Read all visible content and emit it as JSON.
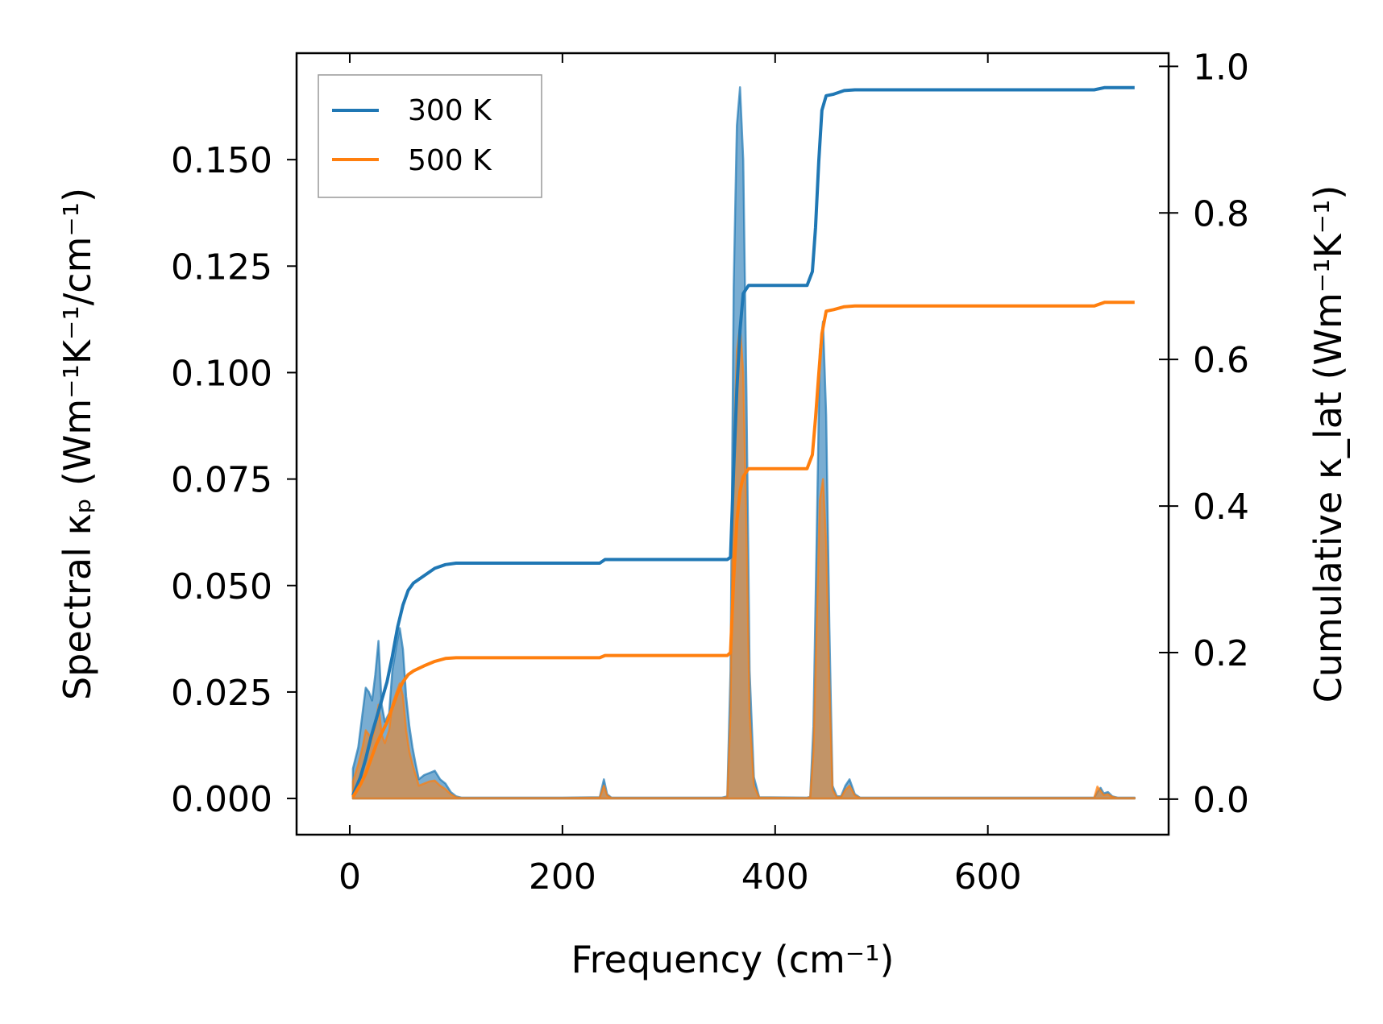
{
  "chart_data": {
    "type": "line",
    "xlabel": "Frequency (cm⁻¹)",
    "ylabel_left": "Spectral κₚ (Wm⁻¹K⁻¹/cm⁻¹)",
    "ylabel_right": "Cumulative κ_lat (Wm⁻¹K⁻¹)",
    "xlim": [
      -50,
      770
    ],
    "ylim_left": [
      -0.0085,
      0.175
    ],
    "ylim_right": [
      -0.0485,
      1.018
    ],
    "xticks": [
      0,
      200,
      400,
      600
    ],
    "xtick_labels": [
      "0",
      "200",
      "400",
      "600"
    ],
    "yticks_left": [
      0,
      0.025,
      0.05,
      0.075,
      0.1,
      0.125,
      0.15
    ],
    "ytick_labels_left": [
      "0.000",
      "0.025",
      "0.050",
      "0.075",
      "0.100",
      "0.125",
      "0.150"
    ],
    "yticks_right": [
      0,
      0.2,
      0.4,
      0.6,
      0.8,
      1.0
    ],
    "ytick_labels_right": [
      "0.0",
      "0.2",
      "0.4",
      "0.6",
      "0.8",
      "1.0"
    ],
    "legend_position": "top-left",
    "colors": {
      "300 K": "#1f77b4",
      "500 K": "#ff7f0e"
    },
    "series": [
      {
        "name": "300 K",
        "color": "#1f77b4",
        "spectral": {
          "x": [
            3,
            8,
            12,
            15,
            18,
            21,
            24,
            27,
            30,
            33,
            37,
            40,
            44,
            47,
            50,
            53,
            56,
            59,
            62,
            65,
            70,
            75,
            80,
            85,
            90,
            95,
            100,
            105,
            120,
            200,
            235,
            239,
            242,
            246,
            250,
            300,
            350,
            355,
            358,
            361,
            364,
            367,
            370,
            373,
            376,
            380,
            385,
            430,
            433,
            436,
            439,
            442,
            445,
            448,
            451,
            454,
            458,
            462,
            466,
            470,
            475,
            480,
            500,
            600,
            700,
            703,
            706,
            709,
            713,
            717,
            722,
            730,
            738
          ],
          "values": [
            0.007,
            0.012,
            0.02,
            0.026,
            0.025,
            0.023,
            0.029,
            0.037,
            0.022,
            0.018,
            0.02,
            0.03,
            0.036,
            0.04,
            0.035,
            0.024,
            0.017,
            0.012,
            0.008,
            0.0045,
            0.0055,
            0.006,
            0.0065,
            0.0045,
            0.0035,
            0.0015,
            0.0005,
            0.0002,
            0.0002,
            0.0002,
            0.0003,
            0.0045,
            0.001,
            0.0002,
            0.0002,
            0.0002,
            0.0002,
            0.0005,
            0.03,
            0.12,
            0.158,
            0.167,
            0.15,
            0.095,
            0.03,
            0.005,
            0.0003,
            0.0002,
            0.0004,
            0.017,
            0.06,
            0.105,
            0.112,
            0.09,
            0.04,
            0.003,
            0.0005,
            0.0005,
            0.003,
            0.0045,
            0.001,
            0.0002,
            0.0002,
            0.0002,
            0.0002,
            0.0015,
            0.0025,
            0.0012,
            0.0015,
            0.0005,
            0.0002,
            0.0002,
            0.0002
          ]
        },
        "cumulative": {
          "x": [
            3,
            10,
            15,
            20,
            25,
            30,
            35,
            40,
            45,
            50,
            55,
            60,
            70,
            80,
            90,
            100,
            120,
            200,
            235,
            240,
            250,
            300,
            355,
            358,
            361,
            364,
            367,
            370,
            375,
            385,
            430,
            435,
            438,
            441,
            444,
            448,
            455,
            465,
            475,
            500,
            600,
            700,
            710,
            738
          ],
          "values": [
            0.005,
            0.03,
            0.055,
            0.085,
            0.11,
            0.135,
            0.16,
            0.195,
            0.235,
            0.265,
            0.285,
            0.295,
            0.305,
            0.315,
            0.32,
            0.322,
            0.322,
            0.322,
            0.322,
            0.327,
            0.327,
            0.327,
            0.327,
            0.33,
            0.45,
            0.56,
            0.64,
            0.69,
            0.701,
            0.701,
            0.701,
            0.72,
            0.78,
            0.87,
            0.94,
            0.96,
            0.962,
            0.967,
            0.968,
            0.968,
            0.968,
            0.968,
            0.971,
            0.971
          ]
        }
      },
      {
        "name": "500 K",
        "color": "#ff7f0e",
        "spectral": {
          "x": [
            3,
            8,
            12,
            15,
            18,
            21,
            24,
            27,
            30,
            33,
            37,
            40,
            44,
            47,
            50,
            53,
            56,
            59,
            62,
            65,
            70,
            75,
            80,
            85,
            90,
            95,
            100,
            105,
            120,
            200,
            235,
            239,
            242,
            246,
            250,
            300,
            350,
            355,
            358,
            361,
            364,
            367,
            370,
            373,
            376,
            380,
            385,
            430,
            433,
            436,
            439,
            442,
            445,
            448,
            451,
            454,
            458,
            462,
            466,
            470,
            475,
            480,
            500,
            600,
            700,
            703,
            706,
            709,
            713,
            717,
            722,
            730,
            738
          ],
          "values": [
            0.004,
            0.008,
            0.012,
            0.016,
            0.015,
            0.014,
            0.017,
            0.022,
            0.015,
            0.013,
            0.016,
            0.022,
            0.025,
            0.027,
            0.024,
            0.016,
            0.011,
            0.008,
            0.0055,
            0.003,
            0.0035,
            0.004,
            0.0042,
            0.003,
            0.0022,
            0.001,
            0.0003,
            0.0001,
            0.0001,
            0.0001,
            0.0002,
            0.003,
            0.0007,
            0.0001,
            0.0001,
            0.0001,
            0.0001,
            0.0003,
            0.02,
            0.08,
            0.105,
            0.111,
            0.1,
            0.063,
            0.02,
            0.003,
            0.0002,
            0.0001,
            0.0003,
            0.011,
            0.04,
            0.07,
            0.075,
            0.06,
            0.027,
            0.002,
            0.0003,
            0.0003,
            0.002,
            0.003,
            0.0007,
            0.0001,
            0.0001,
            0.0001,
            0.0001,
            0.0028,
            0.0018,
            0.0008,
            0.001,
            0.0004,
            0.0001,
            0.0001,
            0.0001
          ]
        },
        "cumulative": {
          "x": [
            3,
            10,
            15,
            20,
            25,
            30,
            35,
            40,
            45,
            50,
            55,
            60,
            70,
            80,
            90,
            100,
            120,
            200,
            235,
            240,
            250,
            300,
            355,
            358,
            361,
            364,
            367,
            370,
            375,
            385,
            430,
            435,
            438,
            441,
            444,
            448,
            455,
            465,
            475,
            500,
            600,
            700,
            710,
            738
          ],
          "values": [
            0.003,
            0.02,
            0.035,
            0.055,
            0.075,
            0.09,
            0.105,
            0.125,
            0.145,
            0.16,
            0.17,
            0.175,
            0.182,
            0.188,
            0.192,
            0.193,
            0.193,
            0.193,
            0.193,
            0.196,
            0.196,
            0.196,
            0.196,
            0.2,
            0.3,
            0.38,
            0.42,
            0.44,
            0.451,
            0.451,
            0.451,
            0.47,
            0.52,
            0.58,
            0.635,
            0.666,
            0.668,
            0.672,
            0.673,
            0.673,
            0.673,
            0.673,
            0.678,
            0.678
          ]
        }
      }
    ]
  }
}
